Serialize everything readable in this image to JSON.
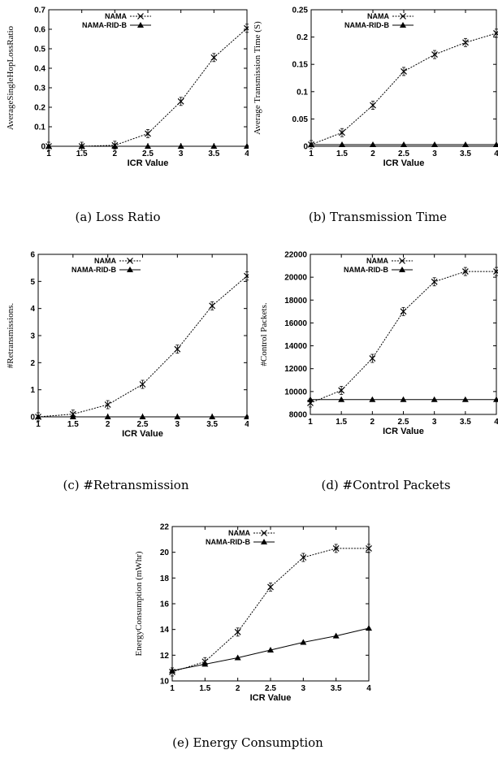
{
  "chart_data": [
    {
      "type": "line",
      "caption": "(a) Loss Ratio",
      "xlabel": "ICR Value",
      "ylabel": "AverageSingleHopLossRatio",
      "x": [
        1,
        1.5,
        2,
        2.5,
        3,
        3.5,
        4
      ],
      "xticks": [
        "1",
        "1.5",
        "2",
        "2.5",
        "3",
        "3.5",
        "4"
      ],
      "xlim": [
        1,
        4
      ],
      "ylim": [
        0,
        0.7
      ],
      "yticks": [
        "0",
        "0.1",
        "0.2",
        "0.3",
        "0.4",
        "0.5",
        "0.6",
        "0.7"
      ],
      "ytick_values": [
        0,
        0.1,
        0.2,
        0.3,
        0.4,
        0.5,
        0.6,
        0.7
      ],
      "legend": "top-left",
      "series": [
        {
          "name": "NAMA",
          "marker": "x",
          "dash": true,
          "values": [
            0,
            0,
            0.005,
            0.065,
            0.23,
            0.455,
            0.605
          ]
        },
        {
          "name": "NAMA-RID-B",
          "marker": "triangle",
          "dash": false,
          "values": [
            0,
            0,
            0,
            0,
            0,
            0,
            0
          ]
        }
      ]
    },
    {
      "type": "line",
      "caption": "(b) Transmission Time",
      "xlabel": "ICR Value",
      "ylabel": "Average Transmission Time (S)",
      "x": [
        1,
        1.5,
        2,
        2.5,
        3,
        3.5,
        4
      ],
      "xticks": [
        "1",
        "1.5",
        "2",
        "2.5",
        "3",
        "3.5",
        "4"
      ],
      "xlim": [
        1,
        4
      ],
      "ylim": [
        0,
        0.25
      ],
      "yticks": [
        "0",
        "0.05",
        "0.1",
        "0.15",
        "0.2",
        "0.25"
      ],
      "ytick_values": [
        0,
        0.05,
        0.1,
        0.15,
        0.2,
        0.25
      ],
      "legend": "top-left",
      "series": [
        {
          "name": "NAMA",
          "marker": "x",
          "dash": true,
          "values": [
            0.003,
            0.025,
            0.075,
            0.137,
            0.168,
            0.19,
            0.207
          ]
        },
        {
          "name": "NAMA-RID-B",
          "marker": "triangle",
          "dash": false,
          "values": [
            0.003,
            0.003,
            0.003,
            0.003,
            0.003,
            0.003,
            0.003
          ]
        }
      ]
    },
    {
      "type": "line",
      "caption": "(c) #Retransmission",
      "xlabel": "ICR Value",
      "ylabel": "#Retransmissions.",
      "x": [
        1,
        1.5,
        2,
        2.5,
        3,
        3.5,
        4
      ],
      "xticks": [
        "1",
        "1.5",
        "2",
        "2.5",
        "3",
        "3.5",
        "4"
      ],
      "xlim": [
        1,
        4
      ],
      "ylim": [
        0,
        6
      ],
      "yticks": [
        "0",
        "1",
        "2",
        "3",
        "4",
        "5",
        "6"
      ],
      "ytick_values": [
        0,
        1,
        2,
        3,
        4,
        5,
        6
      ],
      "legend": "top-left",
      "series": [
        {
          "name": "NAMA",
          "marker": "x",
          "dash": true,
          "values": [
            0,
            0.1,
            0.45,
            1.2,
            2.5,
            4.1,
            5.2
          ]
        },
        {
          "name": "NAMA-RID-B",
          "marker": "triangle",
          "dash": false,
          "values": [
            0,
            0,
            0,
            0,
            0,
            0,
            0
          ]
        }
      ]
    },
    {
      "type": "line",
      "caption": "(d) #Control Packets",
      "xlabel": "ICR Value",
      "ylabel": "#Control Packets.",
      "x": [
        1,
        1.5,
        2,
        2.5,
        3,
        3.5,
        4
      ],
      "xticks": [
        "1",
        "1.5",
        "2",
        "2.5",
        "3",
        "3.5",
        "4"
      ],
      "xlim": [
        1,
        4
      ],
      "ylim": [
        8000,
        22000
      ],
      "yticks": [
        "8000",
        "10000",
        "12000",
        "14000",
        "16000",
        "18000",
        "20000",
        "22000"
      ],
      "ytick_values": [
        8000,
        10000,
        12000,
        14000,
        16000,
        18000,
        20000,
        22000
      ],
      "legend": "top-left",
      "series": [
        {
          "name": "NAMA",
          "marker": "x",
          "dash": true,
          "values": [
            9000,
            10100,
            12900,
            17000,
            19600,
            20500,
            20500
          ]
        },
        {
          "name": "NAMA-RID-B",
          "marker": "triangle",
          "dash": false,
          "values": [
            9300,
            9300,
            9300,
            9300,
            9300,
            9300,
            9300
          ]
        }
      ]
    },
    {
      "type": "line",
      "caption": "(e) Energy Consumption",
      "xlabel": "ICR Value",
      "ylabel": "EnergyConsumption (mWhr)",
      "x": [
        1,
        1.5,
        2,
        2.5,
        3,
        3.5,
        4
      ],
      "xticks": [
        "1",
        "1.5",
        "2",
        "2.5",
        "3",
        "3.5",
        "4"
      ],
      "xlim": [
        1,
        4
      ],
      "ylim": [
        10,
        22
      ],
      "yticks": [
        "10",
        "12",
        "14",
        "16",
        "18",
        "20",
        "22"
      ],
      "ytick_values": [
        10,
        12,
        14,
        16,
        18,
        20,
        22
      ],
      "legend": "top-left",
      "series": [
        {
          "name": "NAMA",
          "marker": "x",
          "dash": true,
          "values": [
            10.7,
            11.5,
            13.8,
            17.3,
            19.6,
            20.3,
            20.3
          ]
        },
        {
          "name": "NAMA-RID-B",
          "marker": "triangle",
          "dash": false,
          "values": [
            10.8,
            11.3,
            11.8,
            12.4,
            13.0,
            13.5,
            14.1
          ]
        }
      ]
    }
  ]
}
